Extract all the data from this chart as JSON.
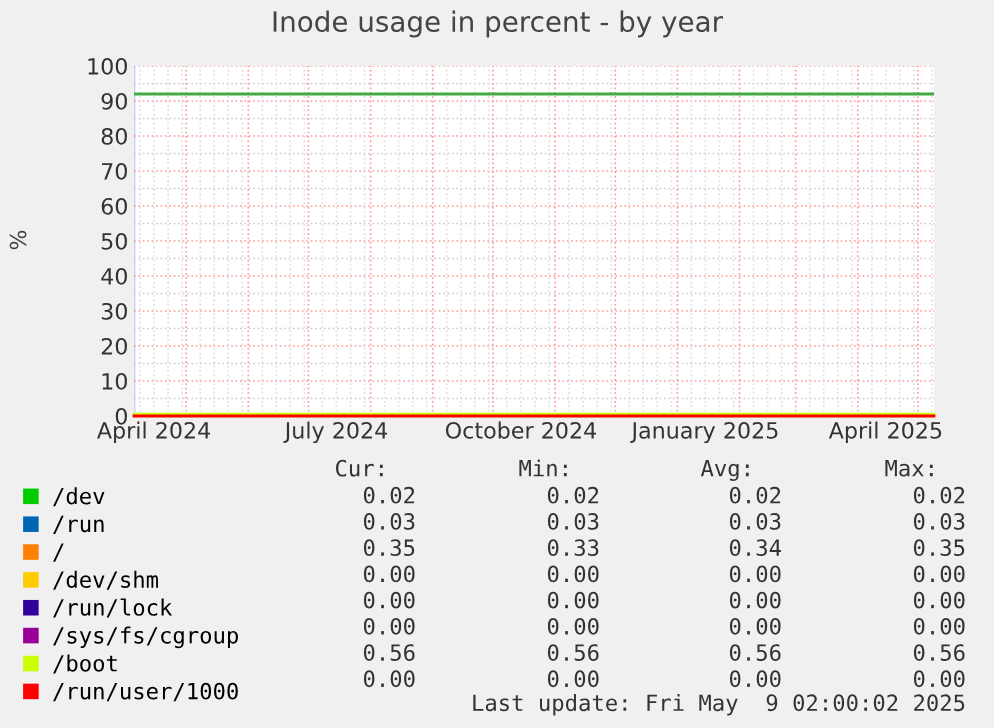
{
  "chart_data": {
    "type": "line",
    "title": "Inode usage in percent - by year",
    "ylabel": "%",
    "xlim": [
      "2024-04-05",
      "2025-05-09"
    ],
    "ylim": [
      0,
      100
    ],
    "xticks": [
      {
        "value": "2024-04-15",
        "label": "April 2024"
      },
      {
        "value": "2024-07-15",
        "label": "July 2024"
      },
      {
        "value": "2024-10-15",
        "label": "October 2024"
      },
      {
        "value": "2025-01-15",
        "label": "January 2025"
      },
      {
        "value": "2025-04-15",
        "label": "April 2025"
      }
    ],
    "yticks": [
      0,
      10,
      20,
      30,
      40,
      50,
      60,
      70,
      80,
      90,
      100
    ],
    "x": [
      "2024-04-05",
      "2025-05-09"
    ],
    "series": [
      {
        "name": "/dev",
        "color": "#00cc00",
        "values": [
          null,
          null
        ]
      },
      {
        "name": "/run",
        "color": "#0066b3",
        "values": [
          null,
          null
        ]
      },
      {
        "name": "/",
        "color": "#ff8000",
        "values": [
          null,
          null
        ]
      },
      {
        "name": "/dev/shm",
        "color": "#ffcc00",
        "values": [
          null,
          null
        ]
      },
      {
        "name": "/run/lock",
        "color": "#330099",
        "values": [
          null,
          null
        ]
      },
      {
        "name": "/sys/fs/cgroup",
        "color": "#990099",
        "values": [
          null,
          null
        ]
      },
      {
        "name": "/boot",
        "color": "#ccff00",
        "values": [
          0.56,
          0.56
        ]
      },
      {
        "name": "/run/user/1000",
        "color": "#ff0000",
        "values": [
          0,
          0
        ]
      }
    ],
    "ref_lines": [
      {
        "axis": "y",
        "value": 92,
        "label": null,
        "color": "#44aa44"
      }
    ],
    "grid": true,
    "legend": "bottom",
    "marker": "none",
    "line_style": "solid",
    "annotations": [
      "Cur:",
      "Min:",
      "Avg:",
      "Max:",
      "0.02",
      "0.02",
      "0.02",
      "0.02",
      "0.03",
      "0.03",
      "0.03",
      "0.03",
      "0.35",
      "0.33",
      "0.34",
      "0.35",
      "0.00",
      "0.00",
      "0.00",
      "0.00",
      "0.00",
      "0.00",
      "0.00",
      "0.00",
      "0.00",
      "0.00",
      "0.00",
      "0.00",
      "0.56",
      "0.56",
      "0.56",
      "0.56",
      "0.00",
      "0.00",
      "0.00",
      "0.00",
      "Last update: Fri May  9 02:00:02 2025"
    ]
  }
}
